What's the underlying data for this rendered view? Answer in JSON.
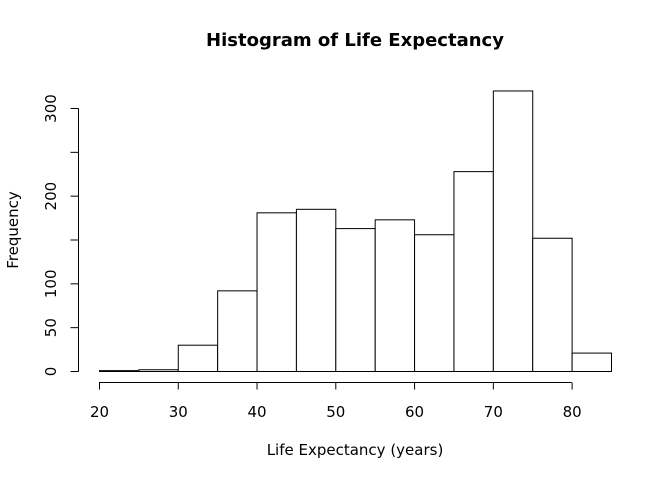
{
  "chart_data": {
    "type": "bar",
    "title": "Histogram of Life Expectancy",
    "xlabel": "Life Expectancy (years)",
    "ylabel": "Frequency",
    "bins": [
      {
        "start": 20,
        "end": 25,
        "value": 1
      },
      {
        "start": 25,
        "end": 30,
        "value": 2
      },
      {
        "start": 30,
        "end": 35,
        "value": 30
      },
      {
        "start": 35,
        "end": 40,
        "value": 92
      },
      {
        "start": 40,
        "end": 45,
        "value": 181
      },
      {
        "start": 45,
        "end": 50,
        "value": 185
      },
      {
        "start": 50,
        "end": 55,
        "value": 163
      },
      {
        "start": 55,
        "end": 60,
        "value": 173
      },
      {
        "start": 60,
        "end": 65,
        "value": 156
      },
      {
        "start": 65,
        "end": 70,
        "value": 228
      },
      {
        "start": 70,
        "end": 75,
        "value": 320
      },
      {
        "start": 75,
        "end": 80,
        "value": 152
      },
      {
        "start": 80,
        "end": 85,
        "value": 21
      }
    ],
    "xlim": [
      20,
      85
    ],
    "ylim": [
      0,
      320
    ],
    "x_ticks": [
      20,
      30,
      40,
      50,
      60,
      70,
      80
    ],
    "x_tick_labels": [
      "20",
      "30",
      "40",
      "50",
      "60",
      "70",
      "80"
    ],
    "y_ticks": [
      0,
      50,
      100,
      150,
      200,
      250,
      300
    ],
    "y_tick_labels": [
      "0",
      "50",
      "100",
      "",
      "200",
      "",
      "300"
    ],
    "bar_fill": "#ffffff",
    "bar_stroke": "#000000",
    "grid": false,
    "legend": "none"
  }
}
